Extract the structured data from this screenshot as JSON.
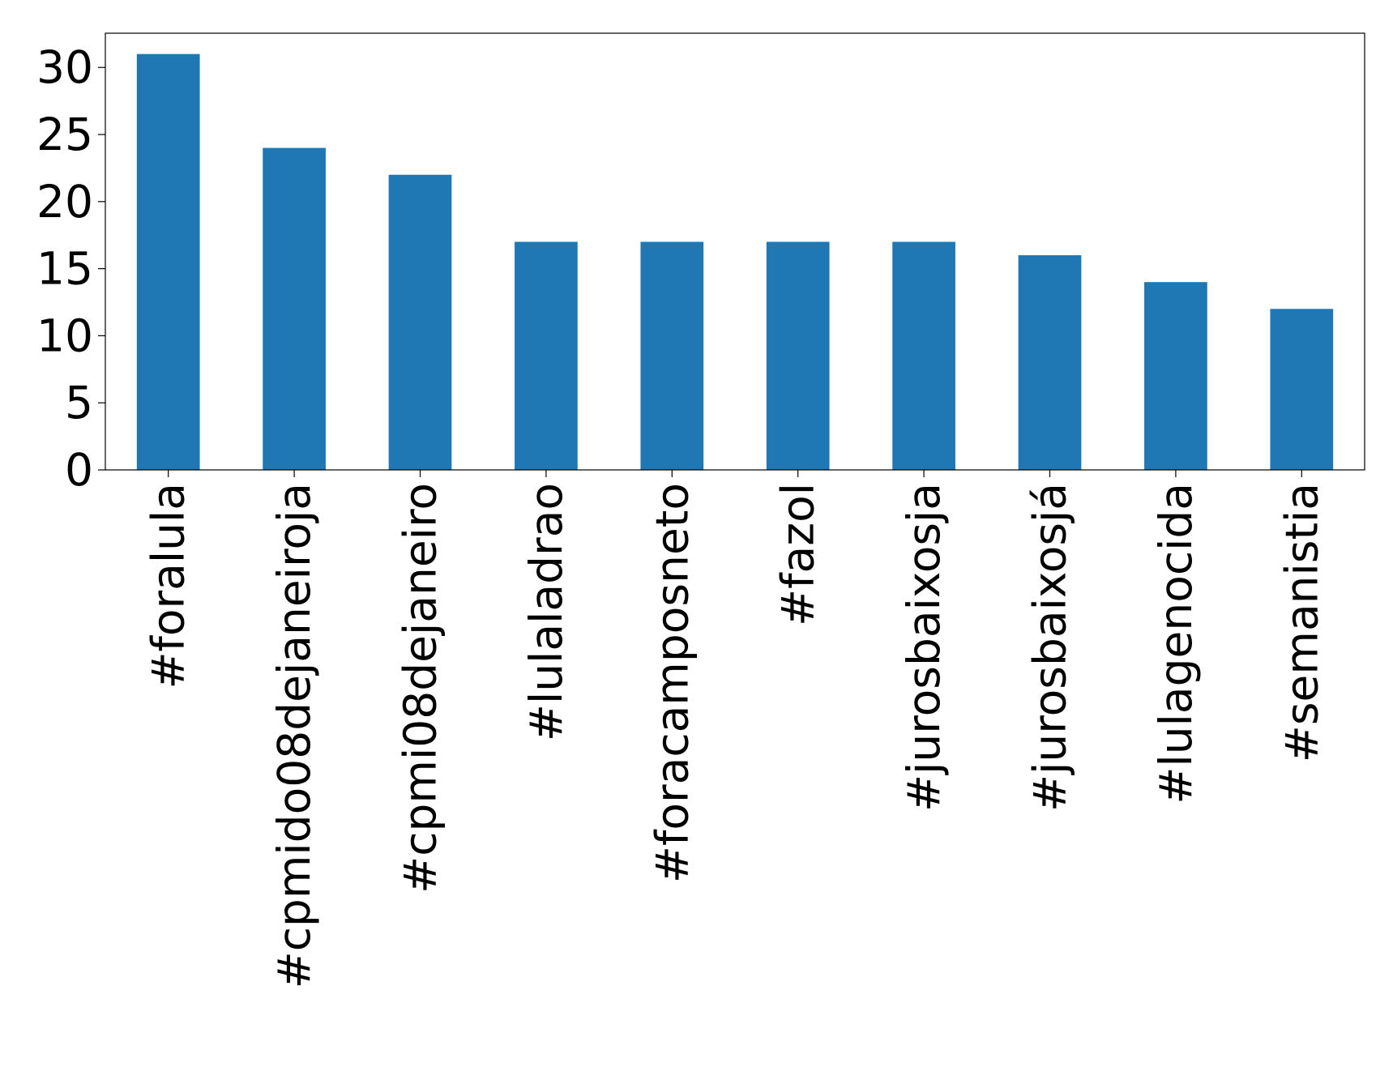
{
  "chart_data": {
    "type": "bar",
    "categories": [
      "#foralula",
      "#cpmido08dejaneiroja",
      "#cpmi08dejaneiro",
      "#lulaladrao",
      "#foracamposneto",
      "#fazol",
      "#jurosbaixosja",
      "#jurosbaixosjá",
      "#lulagenocida",
      "#semanistia"
    ],
    "values": [
      31,
      24,
      22,
      17,
      17,
      17,
      17,
      16,
      14,
      12
    ],
    "color": "#1f77b4",
    "ylim": [
      0,
      32.55
    ],
    "yticks": [
      0,
      5,
      10,
      15,
      20,
      25,
      30
    ],
    "grid": false
  }
}
